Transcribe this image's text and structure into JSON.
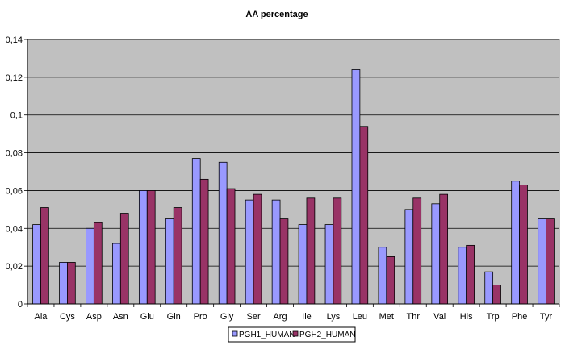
{
  "chart_data": {
    "type": "bar",
    "title": "AA percentage",
    "xlabel": "",
    "ylabel": "",
    "ylim": [
      0,
      0.14
    ],
    "y_ticks": [
      "0",
      "0,02",
      "0,04",
      "0,06",
      "0,08",
      "0,1",
      "0,12",
      "0,14"
    ],
    "y_tick_values": [
      0,
      0.02,
      0.04,
      0.06,
      0.08,
      0.1,
      0.12,
      0.14
    ],
    "grid": true,
    "legend_position": "bottom",
    "plot_background": "#c0c0c0",
    "categories": [
      "Ala",
      "Cys",
      "Asp",
      "Asn",
      "Glu",
      "Gln",
      "Pro",
      "Gly",
      "Ser",
      "Arg",
      "Ile",
      "Lys",
      "Leu",
      "Met",
      "Thr",
      "Val",
      "His",
      "Trp",
      "Phe",
      "Tyr"
    ],
    "series": [
      {
        "name": "PGH1_HUMAN",
        "color": "#9999ff",
        "values": [
          0.042,
          0.022,
          0.04,
          0.032,
          0.06,
          0.045,
          0.077,
          0.075,
          0.055,
          0.055,
          0.042,
          0.042,
          0.124,
          0.03,
          0.05,
          0.053,
          0.03,
          0.017,
          0.065,
          0.045
        ]
      },
      {
        "name": "PGH2_HUMAN",
        "color": "#993366",
        "values": [
          0.051,
          0.022,
          0.043,
          0.048,
          0.06,
          0.051,
          0.066,
          0.061,
          0.058,
          0.045,
          0.056,
          0.056,
          0.094,
          0.025,
          0.056,
          0.058,
          0.031,
          0.01,
          0.063,
          0.045
        ]
      }
    ]
  }
}
